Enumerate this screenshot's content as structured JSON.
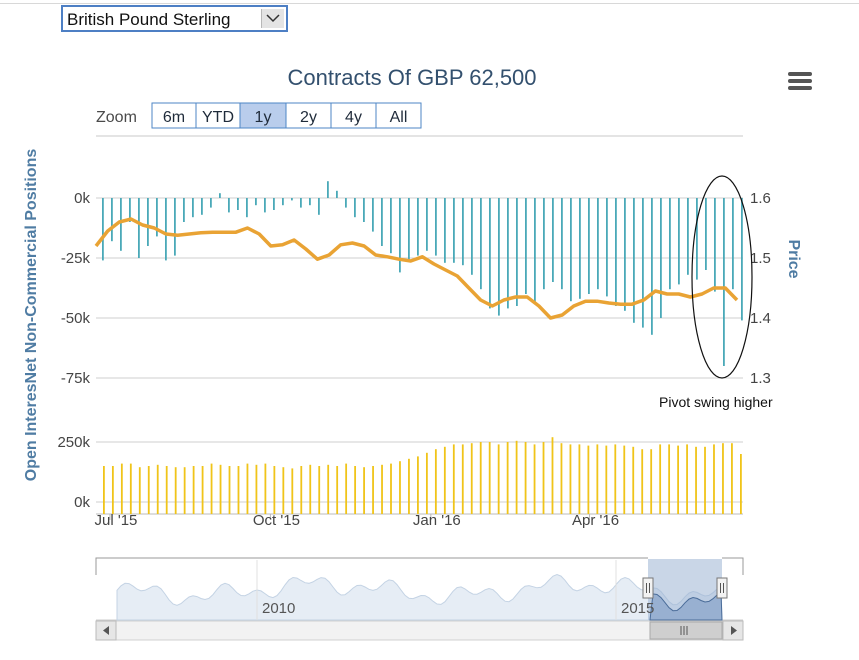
{
  "selector": {
    "selected": "British Pound Sterling"
  },
  "colors": {
    "bar": "#4aa9b8",
    "price": "#e9a334",
    "oi": "#f0c419",
    "title": "#33506e",
    "axis_title": "#4f7ca3"
  },
  "zoom": {
    "label": "Zoom",
    "buttons": [
      "6m",
      "YTD",
      "1y",
      "2y",
      "4y",
      "All"
    ],
    "active": "1y"
  },
  "chart_data": {
    "type": "bar",
    "title": "Contracts Of GBP 62,500",
    "ylabel": "Open InteresNet Non-Commercial Positions",
    "y2label": "Price",
    "x_range": [
      "2015-06-23",
      "2016-06-28"
    ],
    "x_ticks": [
      "Jul '15",
      "Oct '15",
      "Jan '16",
      "Apr '16"
    ],
    "net_positions": {
      "ylim": [
        -75000,
        0
      ],
      "ticks": [
        "0k",
        "-25k",
        "-50k",
        "-75k"
      ],
      "values": [
        -26000,
        -18000,
        -22000,
        -10000,
        -25000,
        -20000,
        -16000,
        -26000,
        -24000,
        -10000,
        -8000,
        -7000,
        -4000,
        2000,
        -6000,
        -5000,
        -8000,
        -3000,
        -6000,
        -5000,
        -3000,
        -1000,
        -4000,
        -3000,
        -7000,
        7000,
        3000,
        -4000,
        -8000,
        -10000,
        -14000,
        -20000,
        -23000,
        -31000,
        -26000,
        -24000,
        -22000,
        -24000,
        -27000,
        -27000,
        -28000,
        -32000,
        -38000,
        -46000,
        -49000,
        -46000,
        -45000,
        -40000,
        -44000,
        -38000,
        -35000,
        -38000,
        -43000,
        -42000,
        -40000,
        -38000,
        -41000,
        -45000,
        -47000,
        -52000,
        -54000,
        -57000,
        -50000,
        -38000,
        -36000,
        -32000,
        -34000,
        -30000,
        -39000,
        -70000,
        -38000,
        -51000
      ]
    },
    "price": {
      "ylim": [
        1.3,
        1.6
      ],
      "ticks": [
        "1.6",
        "1.5",
        "1.4",
        "1.3"
      ],
      "values": [
        1.52,
        1.545,
        1.56,
        1.565,
        1.555,
        1.55,
        1.54,
        1.538,
        1.54,
        1.542,
        1.543,
        1.543,
        1.543,
        1.55,
        1.54,
        1.52,
        1.522,
        1.53,
        1.515,
        1.498,
        1.505,
        1.522,
        1.525,
        1.52,
        1.505,
        1.502,
        1.498,
        1.495,
        1.502,
        1.49,
        1.48,
        1.47,
        1.45,
        1.43,
        1.42,
        1.43,
        1.435,
        1.435,
        1.42,
        1.4,
        1.405,
        1.42,
        1.428,
        1.428,
        1.425,
        1.423,
        1.423,
        1.43,
        1.445,
        1.44,
        1.44,
        1.435,
        1.44,
        1.45,
        1.45,
        1.43
      ]
    },
    "open_interest": {
      "ylim": [
        0,
        250000
      ],
      "ticks": [
        "250k",
        "0k"
      ],
      "values": [
        150000,
        150000,
        160000,
        160000,
        145000,
        150000,
        155000,
        150000,
        145000,
        145000,
        150000,
        150000,
        160000,
        155000,
        150000,
        150000,
        160000,
        155000,
        160000,
        150000,
        145000,
        140000,
        150000,
        155000,
        150000,
        155000,
        150000,
        160000,
        150000,
        145000,
        150000,
        155000,
        160000,
        170000,
        180000,
        190000,
        205000,
        220000,
        230000,
        240000,
        240000,
        245000,
        250000,
        250000,
        240000,
        250000,
        255000,
        250000,
        240000,
        250000,
        270000,
        245000,
        240000,
        240000,
        235000,
        240000,
        235000,
        240000,
        235000,
        230000,
        220000,
        220000,
        240000,
        240000,
        235000,
        240000,
        230000,
        230000,
        240000,
        245000,
        245000,
        200000
      ]
    },
    "annotation": "Pivot swing higher",
    "navigator": {
      "labels": [
        "2010",
        "2015"
      ]
    }
  }
}
